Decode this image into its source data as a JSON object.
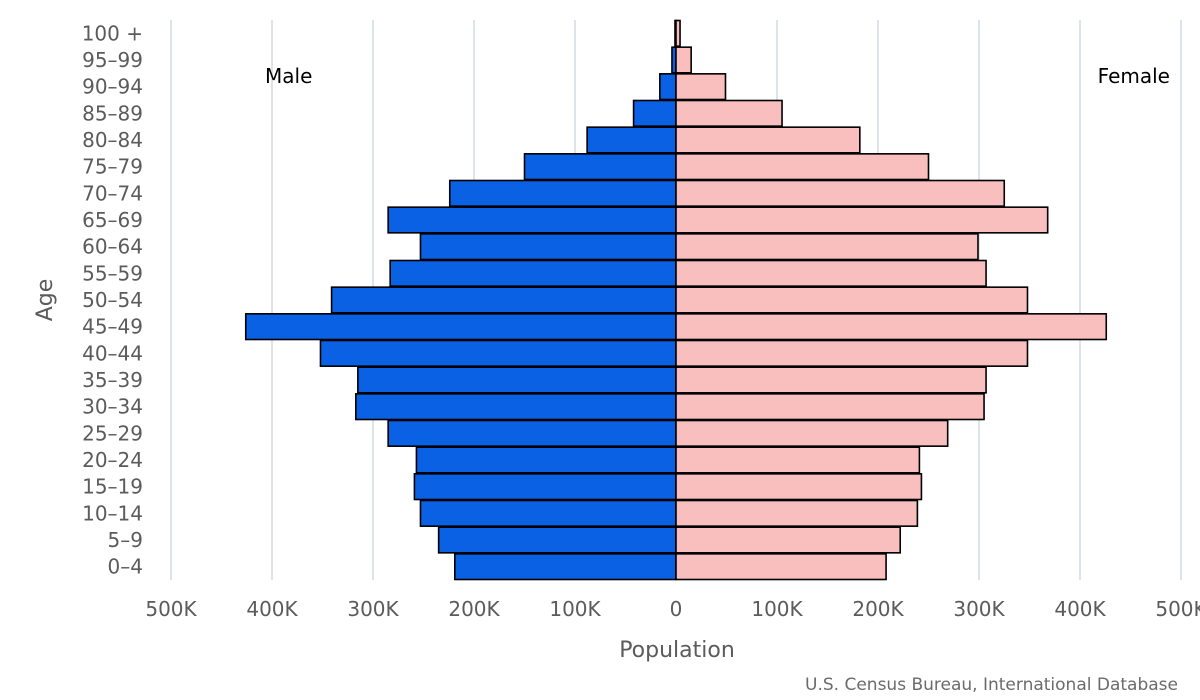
{
  "chart_data": {
    "type": "bar",
    "orientation": "horizontal",
    "subtype": "population-pyramid",
    "ylabel": "Age",
    "xlabel": "Population",
    "source": "U.S. Census Bureau, International Database",
    "categories": [
      "100 +",
      "95-99",
      "90-94",
      "85-89",
      "80-84",
      "75-79",
      "70-74",
      "65-69",
      "60-64",
      "55-59",
      "50-54",
      "45-49",
      "40-44",
      "35-39",
      "30-34",
      "25-29",
      "20-24",
      "15-19",
      "10-14",
      "5-9",
      "0-4"
    ],
    "xlim": [
      -500000,
      500000
    ],
    "xticks": [
      -500000,
      -400000,
      -300000,
      -200000,
      -100000,
      0,
      100000,
      200000,
      300000,
      400000,
      500000
    ],
    "xtick_labels": [
      "500K",
      "400K",
      "300K",
      "200K",
      "100K",
      "0",
      "100K",
      "200K",
      "300K",
      "400K",
      "500K"
    ],
    "grid": true,
    "series": [
      {
        "name": "Male",
        "color": "#0b61e4",
        "values": [
          1000,
          4000,
          16000,
          42000,
          88000,
          150000,
          224000,
          285000,
          253000,
          283000,
          341000,
          426000,
          352000,
          315000,
          317000,
          285000,
          257000,
          259000,
          253000,
          235000,
          219000
        ]
      },
      {
        "name": "Female",
        "color": "#f9bebe",
        "values": [
          4000,
          15000,
          49000,
          105000,
          182000,
          250000,
          325000,
          368000,
          299000,
          307000,
          348000,
          426000,
          348000,
          307000,
          305000,
          269000,
          241000,
          243000,
          239000,
          222000,
          208000
        ]
      }
    ]
  }
}
